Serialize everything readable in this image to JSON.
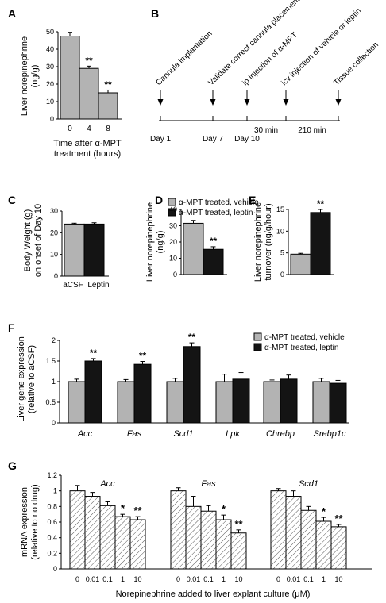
{
  "colors": {
    "grey": "#b3b3b3",
    "black": "#141414",
    "white": "#ffffff",
    "ink": "#000000"
  },
  "legend": {
    "vehicle": "α-MPT treated, vehicle",
    "leptin": "α-MPT treated, leptin"
  },
  "panels": {
    "A": {
      "letter": "A",
      "ylabel_lines": [
        "Liver norepinephrine",
        "(ng/g)"
      ],
      "xlabel_lines": [
        "Time after α-MPT",
        "treatment (hours)"
      ]
    },
    "B": {
      "letter": "B",
      "events": [
        "Cannula implantation",
        "Validate correct cannula placement",
        "ip injection of α-MPT",
        "icv injection of vehicle or leptin",
        "Tissue collection"
      ],
      "days": [
        "Day 1",
        "Day 7",
        "Day 10"
      ],
      "intervals": [
        "30 min",
        "210 min"
      ]
    },
    "C": {
      "letter": "C",
      "ylabel_lines": [
        "Body Weight (g)",
        "on onset of Day 10"
      ]
    },
    "D": {
      "letter": "D",
      "ylabel_lines": [
        "Liver norepinephrine",
        "(ng/g)"
      ]
    },
    "E": {
      "letter": "E",
      "ylabel_lines": [
        "Liver norepinephrine",
        "turnover (ng/g/hour)"
      ]
    },
    "F": {
      "letter": "F",
      "ylabel_lines": [
        "Liver gene expression",
        "(relative to aCSF)"
      ]
    },
    "G": {
      "letter": "G",
      "ylabel_lines": [
        "mRNA expression",
        "(relative to no drug)"
      ],
      "xlabel": "Norepinephrine added to liver explant culture (μM)"
    }
  },
  "chart_data": [
    {
      "panel": "A",
      "type": "bar",
      "categories": [
        "0",
        "4",
        "8"
      ],
      "values": [
        47.5,
        29,
        15
      ],
      "errors": [
        2.2,
        1.3,
        1.6
      ],
      "annotations": [
        "",
        "**",
        "**"
      ],
      "ylim": [
        0,
        50
      ],
      "yticks": [
        0,
        10,
        20,
        30,
        40,
        50
      ],
      "colors": [
        "#b3b3b3"
      ]
    },
    {
      "panel": "C",
      "type": "bar",
      "categories": [
        "aCSF",
        "Leptin"
      ],
      "values": [
        24,
        24
      ],
      "errors": [
        0.4,
        0.6
      ],
      "annotations": [
        "",
        ""
      ],
      "ylim": [
        0,
        30
      ],
      "yticks": [
        0,
        10,
        20,
        30
      ],
      "colors": [
        "#b3b3b3",
        "#141414"
      ]
    },
    {
      "panel": "D",
      "type": "bar",
      "categories": [
        "vehicle",
        "leptin"
      ],
      "values": [
        31.5,
        15.5
      ],
      "errors": [
        1.8,
        1.6
      ],
      "annotations": [
        "",
        "**"
      ],
      "ylim": [
        0,
        40
      ],
      "yticks": [
        0,
        10,
        20,
        30,
        40
      ],
      "colors": [
        "#b3b3b3",
        "#141414"
      ]
    },
    {
      "panel": "E",
      "type": "bar",
      "categories": [
        "vehicle",
        "leptin"
      ],
      "values": [
        4.7,
        14.3
      ],
      "errors": [
        0.2,
        0.7
      ],
      "annotations": [
        "",
        "**"
      ],
      "ylim": [
        0,
        15
      ],
      "yticks": [
        0,
        5,
        10,
        15
      ],
      "colors": [
        "#b3b3b3",
        "#141414"
      ]
    },
    {
      "panel": "F",
      "type": "bar",
      "categories": [
        "Acc",
        "Fas",
        "Scd1",
        "Lpk",
        "Chrebp",
        "Srebp1c"
      ],
      "series": [
        {
          "name": "α-MPT treated, vehicle",
          "values": [
            1.0,
            1.0,
            1.0,
            1.0,
            1.0,
            1.0
          ],
          "errors": [
            0.06,
            0.05,
            0.08,
            0.18,
            0.04,
            0.08
          ]
        },
        {
          "name": "α-MPT treated, leptin",
          "values": [
            1.5,
            1.42,
            1.85,
            1.06,
            1.06,
            0.96
          ],
          "errors": [
            0.06,
            0.07,
            0.09,
            0.16,
            0.1,
            0.07
          ]
        }
      ],
      "annotations": [
        "**",
        "**",
        "**",
        "",
        "",
        ""
      ],
      "ylim": [
        0,
        2
      ],
      "yticks": [
        0,
        0.5,
        1,
        1.5,
        2
      ],
      "yticklabels": [
        "0",
        "0.5",
        "1",
        "1.5",
        "2"
      ]
    },
    {
      "panel": "G",
      "type": "bar",
      "categories": [
        "0",
        "0.01",
        "0.1",
        "1",
        "10"
      ],
      "groups": [
        {
          "name": "Acc",
          "values": [
            1.0,
            0.93,
            0.81,
            0.67,
            0.63
          ],
          "errors": [
            0.07,
            0.05,
            0.05,
            0.03,
            0.04
          ],
          "annotations": [
            "",
            "",
            "",
            "*",
            "**"
          ]
        },
        {
          "name": "Fas",
          "values": [
            1.0,
            0.8,
            0.74,
            0.63,
            0.46
          ],
          "errors": [
            0.04,
            0.13,
            0.07,
            0.06,
            0.04
          ],
          "annotations": [
            "",
            "",
            "",
            "*",
            "**"
          ]
        },
        {
          "name": "Scd1",
          "values": [
            1.0,
            0.93,
            0.75,
            0.61,
            0.54
          ],
          "errors": [
            0.03,
            0.07,
            0.05,
            0.05,
            0.03
          ],
          "annotations": [
            "",
            "",
            "",
            "*",
            "**"
          ]
        }
      ],
      "ylim": [
        0,
        1.2
      ],
      "yticks": [
        0,
        0.2,
        0.4,
        0.6,
        0.8,
        1,
        1.2
      ],
      "yticklabels": [
        "0",
        "0.2",
        "0.4",
        "0.6",
        "0.8",
        "1",
        "1.2"
      ],
      "fill": "hatched"
    }
  ]
}
